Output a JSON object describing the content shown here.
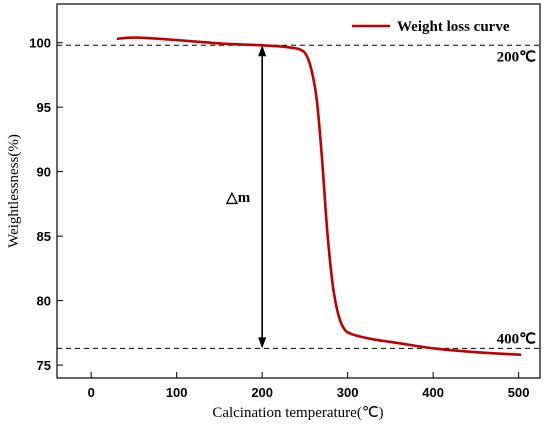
{
  "chart_data": {
    "type": "line",
    "xlabel": "Calcination temperature(℃)",
    "ylabel": "Weightlessness(%)",
    "xlim": [
      -40,
      525
    ],
    "ylim": [
      74,
      103
    ],
    "x_ticks": [
      0,
      100,
      200,
      300,
      400,
      500
    ],
    "y_ticks": [
      75,
      80,
      85,
      90,
      95,
      100
    ],
    "grid": false,
    "legend_position": "top-right",
    "series": [
      {
        "name": "Weight loss curve",
        "color": "#c00000",
        "points": [
          [
            30,
            100.3
          ],
          [
            50,
            100.4
          ],
          [
            80,
            100.3
          ],
          [
            120,
            100.1
          ],
          [
            160,
            99.9
          ],
          [
            200,
            99.8
          ],
          [
            230,
            99.65
          ],
          [
            245,
            99.45
          ],
          [
            252,
            99.0
          ],
          [
            258,
            97.8
          ],
          [
            264,
            95.5
          ],
          [
            270,
            91.0
          ],
          [
            276,
            85.5
          ],
          [
            282,
            81.5
          ],
          [
            288,
            79.2
          ],
          [
            295,
            77.9
          ],
          [
            305,
            77.4
          ],
          [
            330,
            77.0
          ],
          [
            360,
            76.7
          ],
          [
            400,
            76.3
          ],
          [
            450,
            76.0
          ],
          [
            503,
            75.8
          ]
        ]
      }
    ],
    "reference_lines": [
      {
        "y": 99.8,
        "label": "200℃",
        "style": "dashed"
      },
      {
        "y": 76.3,
        "label": "400℃",
        "style": "dashed"
      }
    ],
    "annotation": {
      "label": "△m",
      "x": 200,
      "y_from": 99.8,
      "y_to": 76.3
    }
  }
}
